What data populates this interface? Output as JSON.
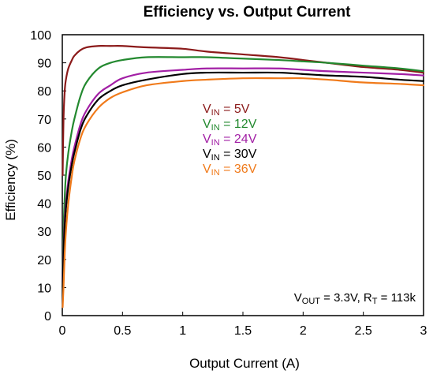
{
  "chart_data": {
    "type": "line",
    "title": "Efficiency vs. Output Current",
    "xlabel": "Output Current (A)",
    "ylabel": "Efficiency (%)",
    "xlim": [
      0,
      3
    ],
    "ylim": [
      0,
      100
    ],
    "x_ticks": [
      "0",
      "0.5",
      "1",
      "1.5",
      "2",
      "2.5",
      "3"
    ],
    "y_ticks": [
      "0",
      "10",
      "20",
      "30",
      "40",
      "50",
      "60",
      "70",
      "80",
      "90",
      "100"
    ],
    "grid": false,
    "legend_position": "center",
    "series": [
      {
        "name_main": "V",
        "name_sub": "IN",
        "name_value": " =  5V",
        "color": "#8b1a1a",
        "x": [
          0.003,
          0.01,
          0.02,
          0.03,
          0.05,
          0.08,
          0.1,
          0.15,
          0.2,
          0.3,
          0.4,
          0.5,
          0.7,
          1.0,
          1.2,
          1.5,
          1.8,
          2.0,
          2.2,
          2.5,
          2.8,
          3.0
        ],
        "y": [
          50,
          70,
          80,
          84,
          88,
          91,
          92.5,
          94.5,
          95.5,
          96,
          96,
          96,
          95.5,
          95,
          94,
          93,
          92,
          91,
          90,
          88.5,
          87.5,
          86.5
        ]
      },
      {
        "name_main": "V",
        "name_sub": "IN",
        "name_value": " =  12V",
        "color": "#23892f",
        "x": [
          0.003,
          0.01,
          0.02,
          0.03,
          0.05,
          0.08,
          0.1,
          0.15,
          0.2,
          0.3,
          0.4,
          0.5,
          0.7,
          1.0,
          1.2,
          1.5,
          1.8,
          2.0,
          2.2,
          2.5,
          2.8,
          3.0
        ],
        "y": [
          15,
          30,
          42,
          50,
          58,
          66,
          70,
          78,
          83,
          88,
          90,
          91,
          92,
          92,
          92,
          91.5,
          91,
          90.5,
          90,
          89,
          88,
          87
        ]
      },
      {
        "name_main": "V",
        "name_sub": "IN",
        "name_value": " =  24V",
        "color": "#a21fa5",
        "x": [
          0.003,
          0.01,
          0.02,
          0.03,
          0.05,
          0.08,
          0.1,
          0.15,
          0.2,
          0.3,
          0.4,
          0.5,
          0.7,
          1.0,
          1.2,
          1.5,
          1.8,
          2.0,
          2.2,
          2.5,
          2.8,
          3.0
        ],
        "y": [
          12,
          24,
          34,
          40,
          48,
          56,
          60,
          68,
          73,
          79,
          82,
          84.5,
          86.5,
          87.5,
          88,
          88,
          88,
          87.5,
          87,
          86.5,
          86,
          85.5
        ]
      },
      {
        "name_main": "V",
        "name_sub": "IN",
        "name_value": " =  30V",
        "color": "#000000",
        "x": [
          0.003,
          0.01,
          0.02,
          0.03,
          0.05,
          0.08,
          0.1,
          0.15,
          0.2,
          0.3,
          0.4,
          0.5,
          0.7,
          1.0,
          1.2,
          1.5,
          1.8,
          2.0,
          2.2,
          2.5,
          2.8,
          3.0
        ],
        "y": [
          10,
          22,
          32,
          38,
          46,
          54,
          58,
          66,
          71,
          77,
          80,
          82,
          84,
          86,
          86.5,
          86.5,
          86.5,
          86,
          85.5,
          85,
          84,
          83.5
        ]
      },
      {
        "name_main": "V",
        "name_sub": "IN",
        "name_value": " =  36V",
        "color": "#f07a1a",
        "x": [
          0.003,
          0.01,
          0.02,
          0.03,
          0.05,
          0.08,
          0.1,
          0.15,
          0.2,
          0.3,
          0.4,
          0.5,
          0.7,
          1.0,
          1.2,
          1.5,
          1.8,
          2.0,
          2.2,
          2.5,
          2.8,
          3.0
        ],
        "y": [
          3,
          10,
          22,
          30,
          40,
          50,
          55,
          63,
          68,
          74,
          77.5,
          79.5,
          82,
          83.5,
          84,
          84.5,
          84.5,
          84.5,
          84,
          83,
          82.5,
          82
        ]
      }
    ],
    "annotation": {
      "p1_main": "V",
      "p1_sub": "OUT",
      "p1_rest": " = 3.3V, R",
      "p2_sub": "T",
      "p2_rest": " = 113k"
    }
  }
}
